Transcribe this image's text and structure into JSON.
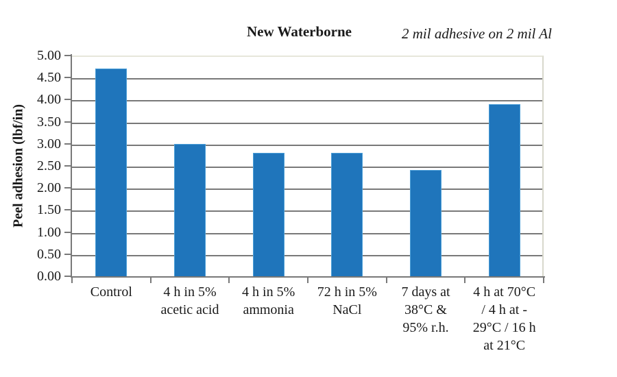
{
  "chart_data": {
    "type": "bar",
    "title": "New Waterborne",
    "subtitle": "2 mil adhesive on 2 mil Al",
    "ylabel": "Peel adhesion (lbf/in)",
    "xlabel": "",
    "ylim": [
      0,
      5
    ],
    "ytick_step": 0.5,
    "ytick_labels": [
      "0.00",
      "0.50",
      "1.00",
      "1.50",
      "2.00",
      "2.50",
      "3.00",
      "3.50",
      "4.00",
      "4.50",
      "5.00"
    ],
    "categories": [
      "Control",
      "4 h in 5% acetic acid",
      "4 h in 5% ammonia",
      "72 h in 5% NaCl",
      "7 days at 38°C & 95% r.h.",
      "4 h at 70°C / 4 h at -29°C / 16 h at 21°C"
    ],
    "category_lines": [
      [
        "Control"
      ],
      [
        "4 h in 5%",
        "acetic acid"
      ],
      [
        "4 h in 5%",
        "ammonia"
      ],
      [
        "72 h in 5%",
        "NaCl"
      ],
      [
        "7 days at",
        "38°C &",
        "95% r.h."
      ],
      [
        "4 h at 70°C",
        "/ 4 h at -",
        "29°C / 16 h",
        "at 21°C"
      ]
    ],
    "values": [
      4.7,
      3.0,
      2.8,
      2.8,
      2.4,
      3.9
    ],
    "grid": true,
    "legend": false,
    "colors": {
      "bar_fill": "#1f75bb",
      "bar_border": "#4c9fd8",
      "gridline": "#787878",
      "axis": "#787878",
      "plot_border": "#e6e6da",
      "text": "#1a1a1a"
    }
  }
}
